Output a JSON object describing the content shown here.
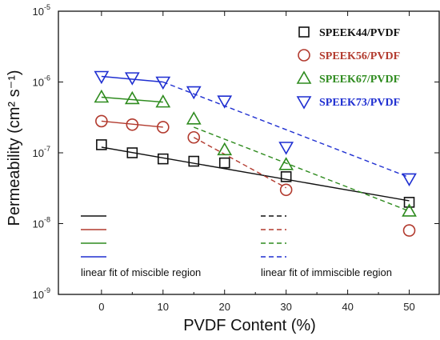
{
  "chart_data": {
    "type": "scatter",
    "xlabel": "PVDF Content (%)",
    "ylabel": "Permeability (cm² s⁻¹)",
    "xlim": [
      -7,
      55
    ],
    "ylim_log10": [
      -9,
      -5
    ],
    "y_scale": "log",
    "x_ticks": [
      0,
      10,
      20,
      30,
      40,
      50
    ],
    "x_tick_labels": [
      "0",
      "10",
      "20",
      "30",
      "40",
      "50"
    ],
    "y_ticks_exponent": [
      -9,
      -8,
      -7,
      -6,
      -5
    ],
    "y_tick_base": "10",
    "legend_position": "top-right",
    "grid": false,
    "series": [
      {
        "name": "SPEEK44/PVDF",
        "marker": "square",
        "color": "#111111",
        "x": [
          0,
          5,
          10,
          15,
          20,
          30,
          50
        ],
        "y": [
          1.3e-07,
          1e-07,
          8.2e-08,
          7.6e-08,
          7.2e-08,
          4.6e-08,
          2e-08
        ],
        "fit_miscible": {
          "x": [
            0,
            50
          ],
          "y": [
            1.2e-07,
            2.1e-08
          ]
        },
        "fit_immiscible": null
      },
      {
        "name": "SPEEK56/PVDF",
        "marker": "circle",
        "color": "#b23a2e",
        "x": [
          0,
          5,
          10,
          15,
          30,
          50
        ],
        "y": [
          2.8e-07,
          2.5e-07,
          2.3e-07,
          1.65e-07,
          3e-08,
          8e-09
        ],
        "fit_miscible": {
          "x": [
            0,
            10
          ],
          "y": [
            2.8e-07,
            2.3e-07
          ]
        },
        "fit_immiscible": {
          "x": [
            15,
            30
          ],
          "y": [
            1.65e-07,
            3.2e-08
          ]
        }
      },
      {
        "name": "SPEEK67/PVDF",
        "marker": "triangle-up",
        "color": "#2e8b1e",
        "x": [
          0,
          5,
          10,
          15,
          20,
          30,
          50
        ],
        "y": [
          6.1e-07,
          5.8e-07,
          5.2e-07,
          3e-07,
          1.1e-07,
          6.8e-08,
          1.5e-08
        ],
        "fit_miscible": {
          "x": [
            0,
            10
          ],
          "y": [
            6.1e-07,
            5.2e-07
          ]
        },
        "fit_immiscible": {
          "x": [
            15,
            50
          ],
          "y": [
            2.3e-07,
            1.5e-08
          ]
        }
      },
      {
        "name": "SPEEK73/PVDF",
        "marker": "triangle-down",
        "color": "#1f2fd1",
        "x": [
          0,
          5,
          10,
          15,
          20,
          30,
          50
        ],
        "y": [
          1.2e-06,
          1.15e-06,
          1e-06,
          7.3e-07,
          5.4e-07,
          1.2e-07,
          4.3e-08
        ],
        "fit_miscible": {
          "x": [
            0,
            10
          ],
          "y": [
            1.2e-06,
            1e-06
          ]
        },
        "fit_immiscible": {
          "x": [
            10,
            50
          ],
          "y": [
            1e-06,
            4.5e-08
          ]
        }
      }
    ],
    "annotations": {
      "miscible_label": "linear fit of miscible region",
      "immiscible_label": "linear fit of immiscible region"
    }
  }
}
